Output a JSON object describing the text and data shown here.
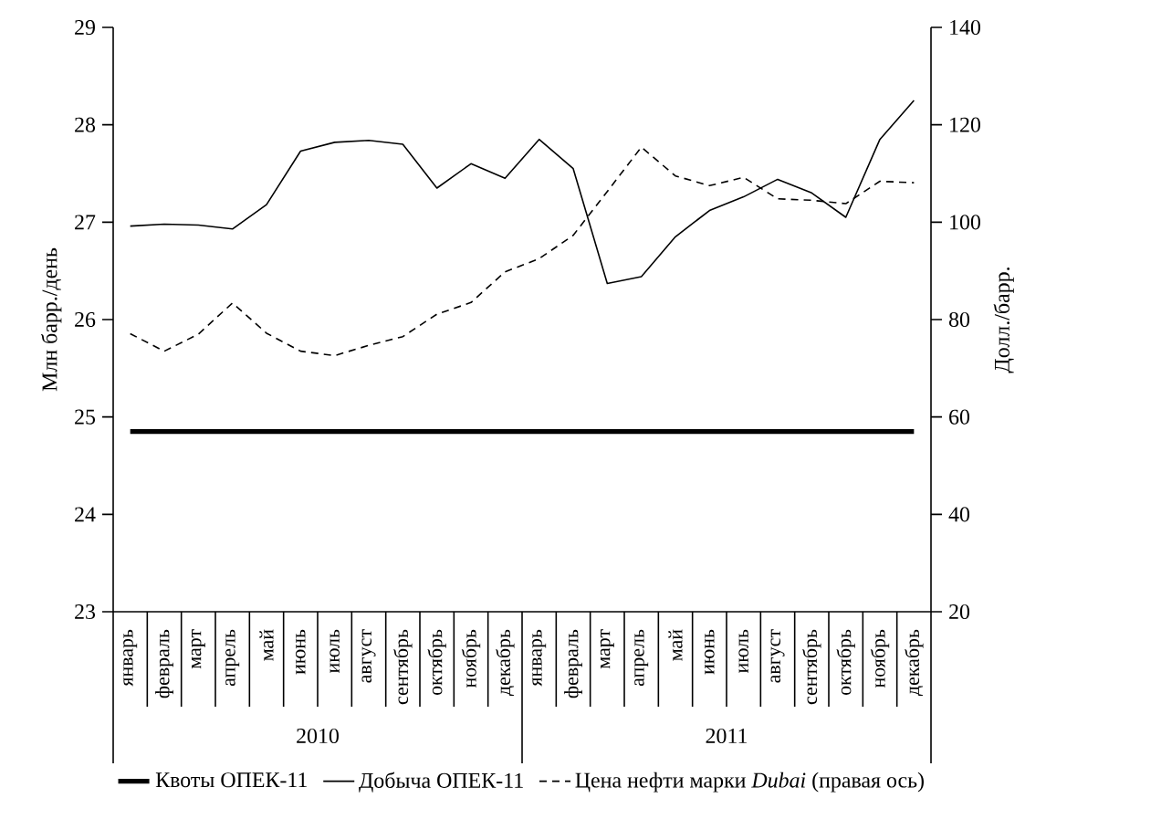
{
  "chart_data": {
    "type": "line",
    "ylabel": "Млн барр./день",
    "y2label": "Долл./барр.",
    "categories": [
      "январь",
      "февраль",
      "март",
      "апрель",
      "май",
      "июнь",
      "июль",
      "август",
      "сентябрь",
      "октябрь",
      "ноябрь",
      "декабрь",
      "январь",
      "февраль",
      "март",
      "апрель",
      "май",
      "июнь",
      "июль",
      "август",
      "сентябрь",
      "октябрь",
      "ноябрь",
      "декабрь"
    ],
    "annotations": [
      "2010",
      "2011"
    ],
    "ylim": [
      23,
      29
    ],
    "yticks": [
      23,
      24,
      25,
      26,
      27,
      28,
      29
    ],
    "y2lim": [
      20,
      140
    ],
    "y2ticks": [
      20,
      40,
      60,
      80,
      100,
      120,
      140
    ],
    "legend": "bottom",
    "grid": false,
    "marker": "none",
    "series": [
      {
        "name": "Квоты ОПЕК-11",
        "type": "line",
        "color": "#000000",
        "line_style": "solid",
        "values": [
          24.85,
          24.85,
          24.85,
          24.85,
          24.85,
          24.85,
          24.85,
          24.85,
          24.85,
          24.85,
          24.85,
          24.85,
          24.85,
          24.85,
          24.85,
          24.85,
          24.85,
          24.85,
          24.85,
          24.85,
          24.85,
          24.85,
          24.85,
          24.85
        ]
      },
      {
        "name": "Добыча ОПЕК-11",
        "type": "line",
        "color": "#000000",
        "line_style": "solid",
        "values": [
          26.96,
          26.98,
          26.97,
          26.93,
          27.18,
          27.73,
          27.82,
          27.84,
          27.8,
          27.35,
          27.6,
          27.45,
          27.85,
          27.55,
          26.37,
          26.44,
          26.85,
          27.12,
          27.26,
          27.44,
          27.3,
          27.05,
          27.85,
          28.25
        ]
      },
      {
        "name": "Цена нефти марки *Dubai* (правая ось)",
        "type": "line",
        "color": "#000000",
        "line_style": "dashed",
        "axis": "y2",
        "values": [
          77.1,
          73.5,
          77.0,
          83.4,
          77.2,
          73.5,
          72.6,
          74.7,
          76.5,
          81.1,
          83.5,
          89.8,
          92.5,
          97.3,
          106.3,
          115.4,
          109.5,
          107.5,
          109.2,
          104.8,
          104.5,
          103.8,
          108.4,
          108.1
        ]
      }
    ]
  }
}
